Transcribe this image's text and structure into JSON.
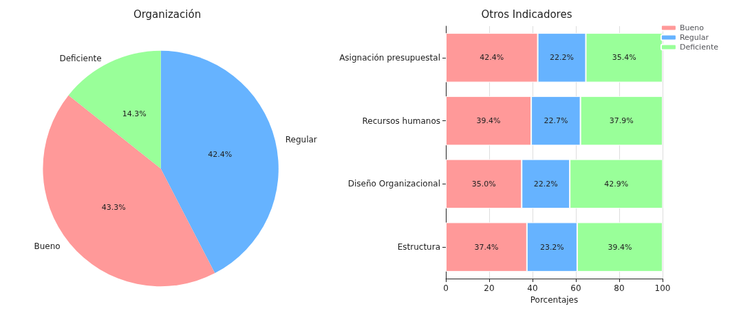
{
  "chart_data": [
    {
      "type": "pie",
      "title": "Organización",
      "categories": [
        "Regular",
        "Bueno",
        "Deficiente"
      ],
      "values": [
        42.4,
        43.3,
        14.3
      ],
      "colors": [
        "#66b3ff",
        "#ff9999",
        "#99ff99"
      ],
      "value_labels": [
        "42.4%",
        "43.3%",
        "14.3%"
      ]
    },
    {
      "type": "bar",
      "title": "Otros Indicadores",
      "orientation": "horizontal",
      "stacked": true,
      "xlabel": "Porcentajes",
      "categories": [
        "Asignación presupuestal",
        "Recursos humanos",
        "Diseño Organizacional",
        "Estructura"
      ],
      "series": [
        {
          "name": "Bueno",
          "color": "#ff9999",
          "values": [
            42.4,
            39.4,
            35.0,
            37.4
          ],
          "value_labels": [
            "42.4%",
            "39.4%",
            "35.0%",
            "37.4%"
          ]
        },
        {
          "name": "Regular",
          "color": "#66b3ff",
          "values": [
            22.2,
            22.7,
            22.2,
            23.2
          ],
          "value_labels": [
            "22.2%",
            "22.7%",
            "22.2%",
            "23.2%"
          ]
        },
        {
          "name": "Deficiente",
          "color": "#99ff99",
          "values": [
            35.4,
            37.9,
            42.9,
            39.4
          ],
          "value_labels": [
            "35.4%",
            "37.9%",
            "42.9%",
            "39.4%"
          ]
        }
      ],
      "xlim": [
        0,
        100
      ],
      "xticks": [
        0,
        20,
        40,
        60,
        80,
        100
      ],
      "grid": "x",
      "legend": "top right"
    }
  ]
}
